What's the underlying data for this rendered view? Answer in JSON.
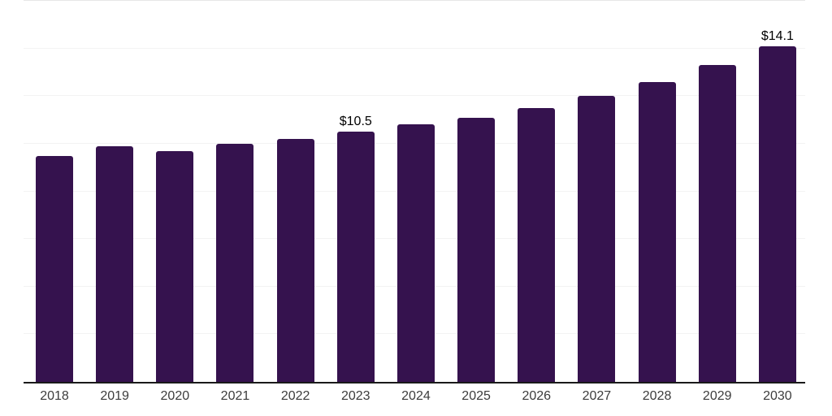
{
  "chart_data": {
    "type": "bar",
    "title": "",
    "xlabel": "",
    "ylabel": "",
    "categories": [
      "2018",
      "2019",
      "2020",
      "2021",
      "2022",
      "2023",
      "2024",
      "2025",
      "2026",
      "2027",
      "2028",
      "2029",
      "2030"
    ],
    "values": [
      9.5,
      9.9,
      9.7,
      10.0,
      10.2,
      10.5,
      10.8,
      11.1,
      11.5,
      12.0,
      12.6,
      13.3,
      14.1
    ],
    "data_labels": [
      "",
      "",
      "",
      "",
      "",
      "$10.5",
      "",
      "",
      "",
      "",
      "",
      "",
      "$14.1"
    ],
    "ylim": [
      0,
      16
    ],
    "yticks": [
      2,
      4,
      6,
      8,
      10,
      12,
      14,
      16
    ],
    "ytick_labels_visible": false,
    "grid": "horizontal",
    "legend": "none"
  },
  "style": {
    "bar_color": "#35124e",
    "axis_line_color": "#1a1a1a",
    "gridline_color": "#f3f3f3",
    "top_gridline_color": "#e7e7e7",
    "value_label_color": "#000000",
    "tick_label_color": "#3c3c3c",
    "background_color": "#ffffff"
  }
}
